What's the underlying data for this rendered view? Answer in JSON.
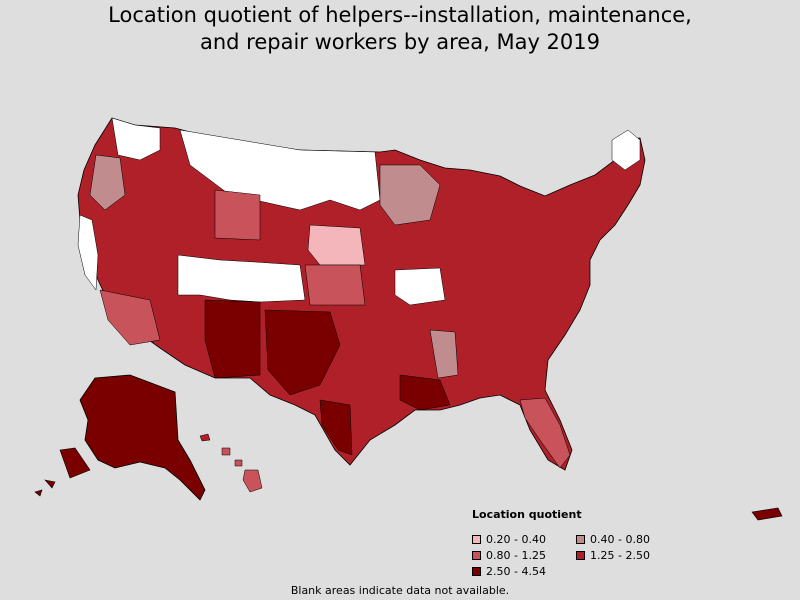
{
  "title_line1": "Location quotient of helpers--installation, maintenance,",
  "title_line2": "and repair workers by area, May 2019",
  "legend": {
    "title": "Location quotient",
    "items": [
      {
        "label": "0.20 - 0.40",
        "color": "#f4b6bb"
      },
      {
        "label": "0.40 - 0.80",
        "color": "#c08c8e"
      },
      {
        "label": "0.80 - 1.25",
        "color": "#c9535a"
      },
      {
        "label": "1.25 - 2.50",
        "color": "#b02029"
      },
      {
        "label": "2.50 - 4.54",
        "color": "#7a0000"
      }
    ]
  },
  "footnote": "Blank areas indicate data not available.",
  "colors": {
    "background": "#dedede",
    "no_data": "#ffffff",
    "border": "#000000"
  }
}
